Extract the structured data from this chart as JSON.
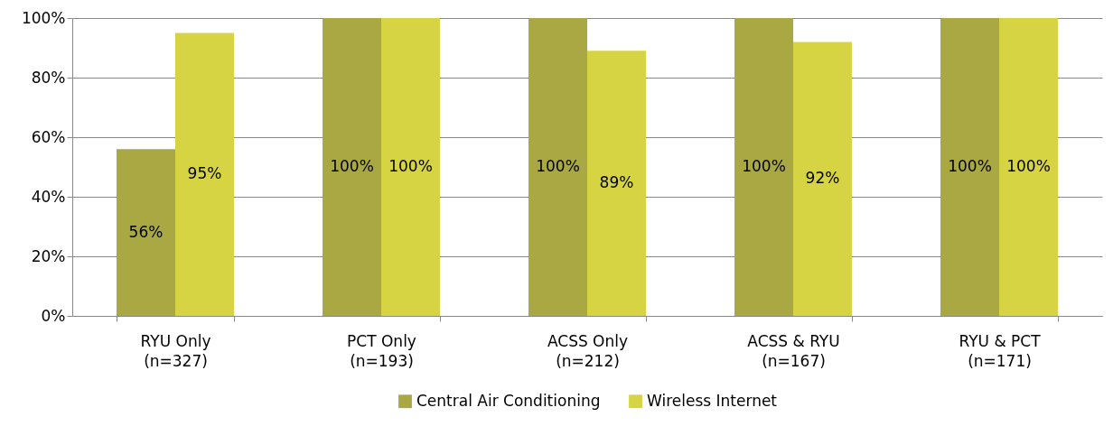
{
  "chart_data": {
    "type": "bar",
    "categories": [
      "RYU Only\n(n=327)",
      "PCT Only\n(n=193)",
      "ACSS Only\n(n=212)",
      "ACSS & RYU\n(n=167)",
      "RYU & PCT\n(n=171)"
    ],
    "series": [
      {
        "name": "Central Air Conditioning",
        "color": "#a9a843",
        "values": [
          56,
          100,
          100,
          100,
          100
        ],
        "value_labels": [
          "56%",
          "100%",
          "100%",
          "100%",
          "100%"
        ]
      },
      {
        "name": "Wireless Internet",
        "color": "#d7d444",
        "values": [
          95,
          100,
          89,
          92,
          100
        ],
        "value_labels": [
          "95%",
          "100%",
          "89%",
          "92%",
          "100%"
        ]
      }
    ],
    "ylim": [
      0,
      100
    ],
    "yticks": [
      {
        "value": 0,
        "label": "0%"
      },
      {
        "value": 20,
        "label": "20%"
      },
      {
        "value": 40,
        "label": "40%"
      },
      {
        "value": 60,
        "label": "60%"
      },
      {
        "value": 80,
        "label": "80%"
      },
      {
        "value": 100,
        "label": "100%"
      }
    ],
    "grid": "y",
    "legend": "bottom"
  }
}
